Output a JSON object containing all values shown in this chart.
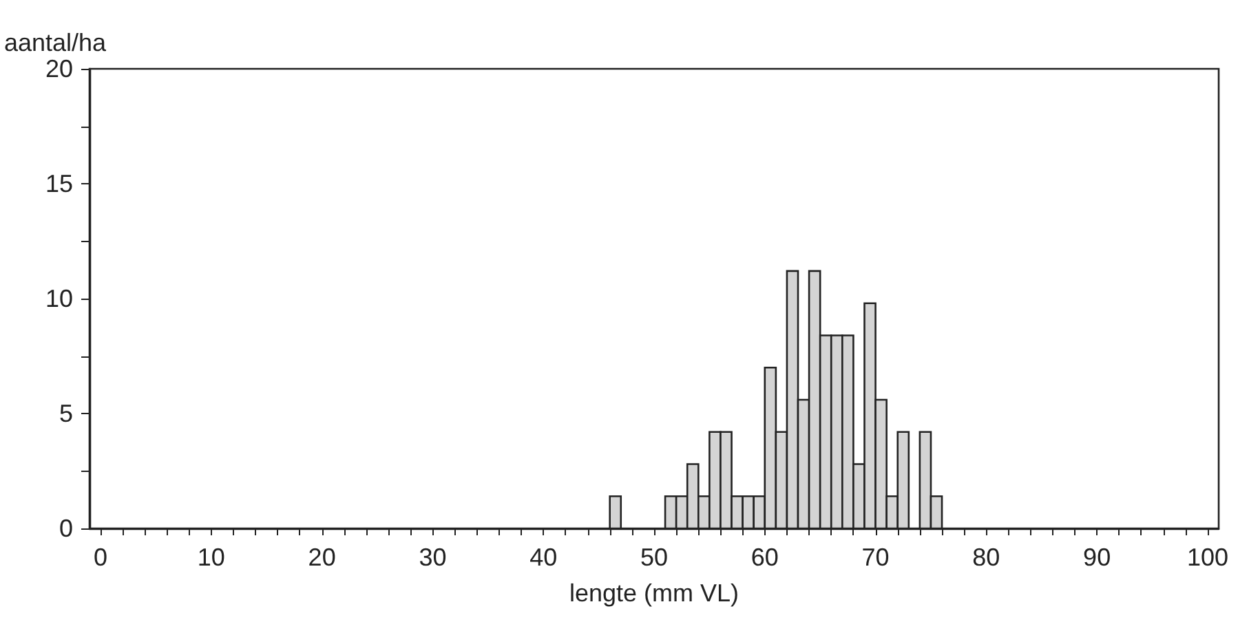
{
  "chart_data": {
    "type": "histogram",
    "xlabel": "lengte (mm VL)",
    "ylabel": "aantal/ha",
    "color": "#d4d4d4",
    "bins": [
      46,
      47,
      48,
      49,
      50,
      51,
      52,
      53,
      54,
      55,
      56,
      57,
      58,
      59,
      60,
      61,
      62,
      63,
      64,
      65,
      66,
      67,
      68,
      69,
      70,
      71,
      72,
      73,
      74,
      75,
      76
    ],
    "values": [
      1.4,
      0,
      0,
      0,
      0,
      1.4,
      1.4,
      2.8,
      1.4,
      4.2,
      4.2,
      1.4,
      1.4,
      1.4,
      7.0,
      4.2,
      11.2,
      5.6,
      11.2,
      8.4,
      8.4,
      8.4,
      2.8,
      9.8,
      5.6,
      1.4,
      4.2,
      0,
      4.2,
      1.4
    ],
    "xlim": [
      -1,
      101
    ],
    "xticks": [
      0,
      {
        "value": 2,
        "label": null
      },
      {
        "value": 4,
        "label": null
      },
      {
        "value": 6,
        "label": null
      },
      {
        "value": 8,
        "label": null
      },
      10,
      {
        "value": 12,
        "label": null
      },
      {
        "value": 14,
        "label": null
      },
      {
        "value": 16,
        "label": null
      },
      {
        "value": 18,
        "label": null
      },
      20,
      {
        "value": 22,
        "label": null
      },
      {
        "value": 24,
        "label": null
      },
      {
        "value": 26,
        "label": null
      },
      {
        "value": 28,
        "label": null
      },
      30,
      {
        "value": 32,
        "label": null
      },
      {
        "value": 34,
        "label": null
      },
      {
        "value": 36,
        "label": null
      },
      {
        "value": 38,
        "label": null
      },
      40,
      {
        "value": 42,
        "label": null
      },
      {
        "value": 44,
        "label": null
      },
      {
        "value": 46,
        "label": null
      },
      {
        "value": 48,
        "label": null
      },
      50,
      {
        "value": 52,
        "label": null
      },
      {
        "value": 54,
        "label": null
      },
      {
        "value": 56,
        "label": null
      },
      {
        "value": 58,
        "label": null
      },
      60,
      {
        "value": 62,
        "label": null
      },
      {
        "value": 64,
        "label": null
      },
      {
        "value": 66,
        "label": null
      },
      {
        "value": 68,
        "label": null
      },
      70,
      {
        "value": 72,
        "label": null
      },
      {
        "value": 74,
        "label": null
      },
      {
        "value": 76,
        "label": null
      },
      {
        "value": 78,
        "label": null
      },
      80,
      {
        "value": 82,
        "label": null
      },
      {
        "value": 84,
        "label": null
      },
      {
        "value": 86,
        "label": null
      },
      {
        "value": 88,
        "label": null
      },
      90,
      {
        "value": 92,
        "label": null
      },
      {
        "value": 94,
        "label": null
      },
      {
        "value": 96,
        "label": null
      },
      {
        "value": 98,
        "label": null
      },
      100
    ],
    "ylim": [
      0,
      20
    ],
    "yticks": [
      0,
      {
        "value": 2.5,
        "label": null
      },
      5,
      {
        "value": 7.5,
        "label": null
      },
      10,
      {
        "value": 12.5,
        "label": null
      },
      15,
      {
        "value": 17.5,
        "label": null
      },
      20
    ],
    "grid": false
  }
}
